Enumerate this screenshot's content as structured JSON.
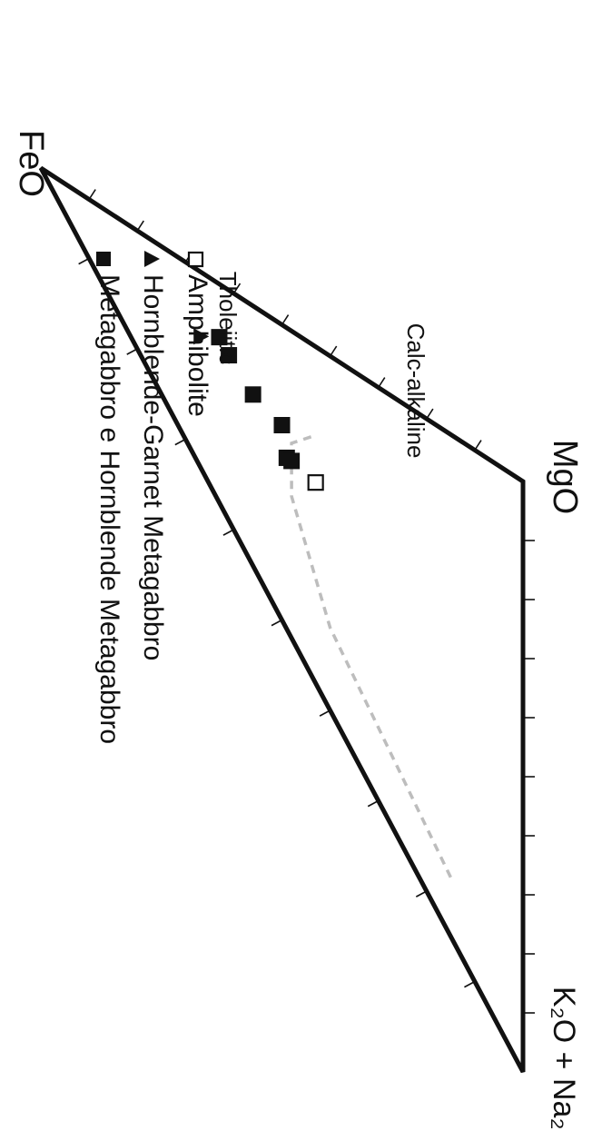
{
  "chart_data": {
    "type": "ternary",
    "vertices": {
      "top": "FeO",
      "bottom_left": "K₂O + Na₂O",
      "bottom_right": "MgO"
    },
    "tick_divisions": 10,
    "legend": [
      {
        "label": "Metagabbro e Hornblende Metagabbro",
        "marker": "filled-square"
      },
      {
        "label": "Hornblende-Garnet Metagabbro",
        "marker": "filled-triangle"
      },
      {
        "label": "Amphibolite",
        "marker": "open-square"
      }
    ],
    "field_labels": {
      "upper": "Tholeiitic",
      "lower": "Calc-alkaline"
    },
    "boundary_line": {
      "style": "dashed",
      "color": "#bdbdbd",
      "points": [
        {
          "FeO": 15,
          "MgO": 10,
          "Alk": 75
        },
        {
          "FeO": 40,
          "MgO": 14,
          "Alk": 46
        },
        {
          "FeO": 48,
          "MgO": 24,
          "Alk": 28
        },
        {
          "FeO": 48,
          "MgO": 33,
          "Alk": 19
        },
        {
          "FeO": 43,
          "MgO": 42,
          "Alk": 15
        }
      ]
    },
    "series": [
      {
        "name": "Metagabbro e Hornblende Metagabbro",
        "marker": "filled-square",
        "color": "#111111",
        "points": [
          {
            "FeO": 63,
            "MgO": 28,
            "Alk": 9
          },
          {
            "FeO": 61,
            "MgO": 28,
            "Alk": 11
          },
          {
            "FeO": 56,
            "MgO": 29,
            "Alk": 15
          },
          {
            "FeO": 50,
            "MgO": 33,
            "Alk": 17
          },
          {
            "FeO": 49,
            "MgO": 29,
            "Alk": 22
          },
          {
            "FeO": 48,
            "MgO": 30,
            "Alk": 22
          }
        ]
      },
      {
        "name": "Hornblende-Garnet Metagabbro",
        "marker": "filled-triangle",
        "color": "#111111",
        "points": [
          {
            "FeO": 67,
            "MgO": 22,
            "Alk": 11
          }
        ]
      },
      {
        "name": "Amphibolite",
        "marker": "open-square",
        "color": "#111111",
        "points": [
          {
            "FeO": 43,
            "MgO": 34,
            "Alk": 23
          }
        ]
      }
    ]
  }
}
